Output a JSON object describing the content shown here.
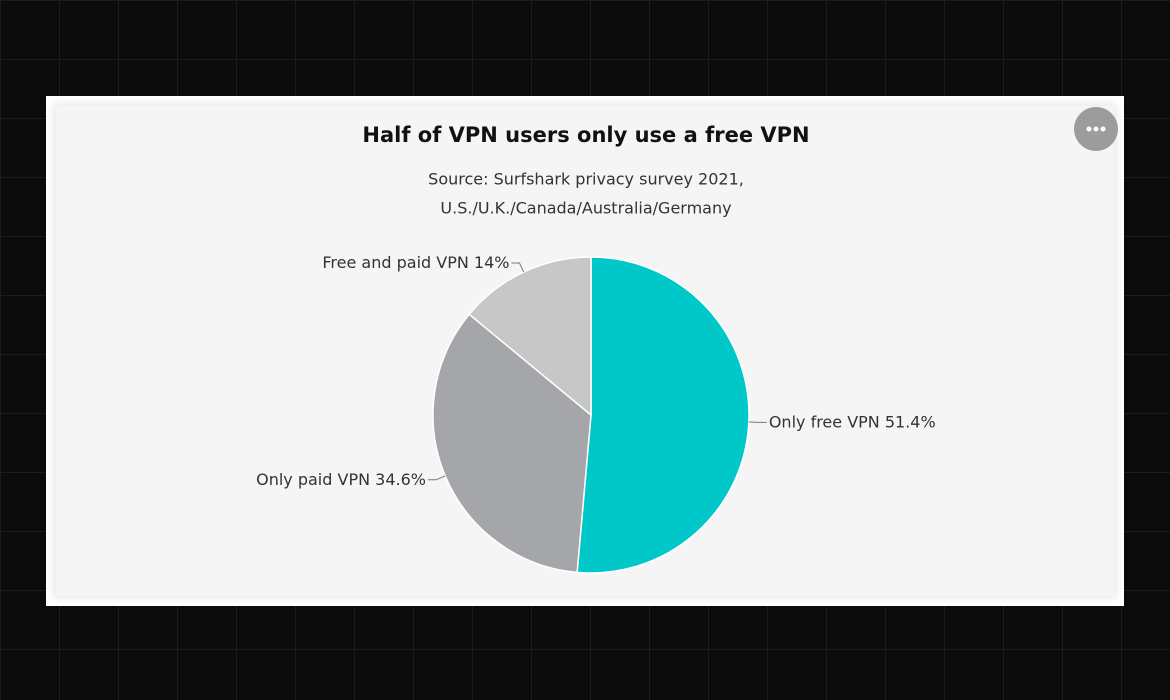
{
  "chart_data": {
    "type": "pie",
    "title": "Half of VPN users only use a free VPN",
    "subtitle": [
      "Source: Surfshark privacy survey 2021,",
      "U.S./U.K./Canada/Australia/Germany"
    ],
    "categories": [
      "Only free VPN",
      "Only paid VPN",
      "Free and paid VPN"
    ],
    "values": [
      51.4,
      34.6,
      14
    ],
    "value_labels": [
      "51.4%",
      "34.6%",
      "14%"
    ],
    "colors": [
      "#00c8c8",
      "#a5a6a9",
      "#c7c7c7"
    ]
  }
}
